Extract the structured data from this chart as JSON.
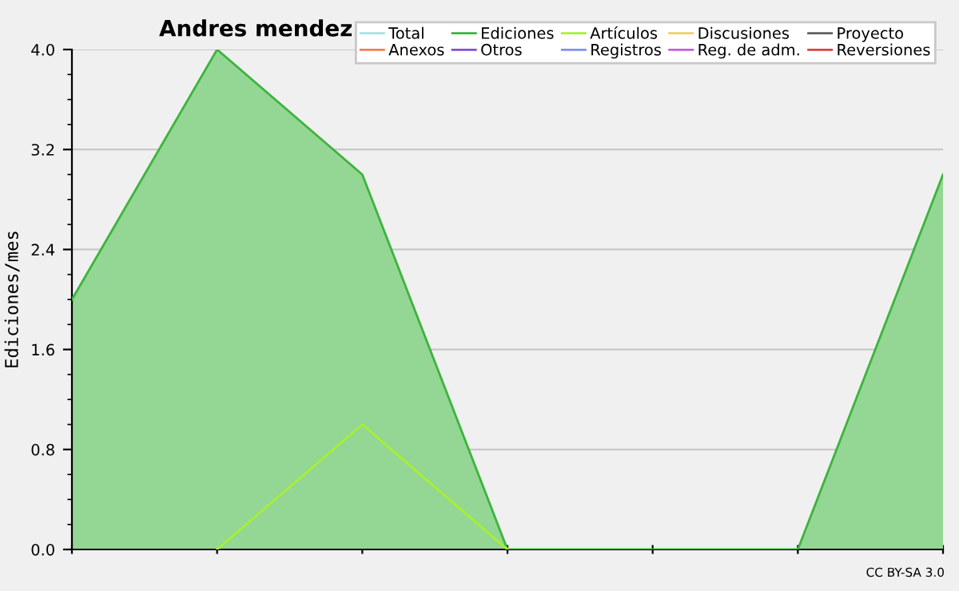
{
  "chart_data": {
    "type": "line",
    "title": "Andres mendez",
    "ylabel": "Ediciones/mes",
    "categories": [
      null,
      null,
      null,
      null,
      null,
      null,
      null
    ],
    "series": [
      {
        "name": "Total",
        "color": "#a6e3e3",
        "values": [
          null,
          null,
          null,
          null,
          null,
          null,
          null
        ]
      },
      {
        "name": "Ediciones",
        "color": "#3cb43c",
        "type": "area",
        "values": [
          2,
          4,
          3,
          0,
          0,
          0,
          3
        ]
      },
      {
        "name": "Artículos",
        "color": "#a8f030",
        "values": [
          null,
          0,
          1,
          0,
          null,
          null,
          null
        ]
      },
      {
        "name": "Discusiones",
        "color": "#f0d060",
        "values": [
          null,
          null,
          null,
          null,
          null,
          null,
          null
        ]
      },
      {
        "name": "Proyecto",
        "color": "#606060",
        "values": [
          null,
          null,
          null,
          null,
          null,
          null,
          null
        ]
      },
      {
        "name": "Anexos",
        "color": "#f08050",
        "values": [
          null,
          null,
          null,
          null,
          null,
          null,
          null
        ]
      },
      {
        "name": "Otros",
        "color": "#8050d0",
        "values": [
          null,
          null,
          null,
          null,
          null,
          null,
          null
        ]
      },
      {
        "name": "Registros",
        "color": "#8090f0",
        "values": [
          null,
          null,
          null,
          null,
          null,
          null,
          null
        ]
      },
      {
        "name": "Reg. de adm.",
        "color": "#c060e0",
        "values": [
          null,
          null,
          null,
          null,
          null,
          null,
          null
        ]
      },
      {
        "name": "Reversiones",
        "color": "#e04040",
        "values": [
          null,
          null,
          null,
          null,
          null,
          null,
          null
        ]
      }
    ],
    "ylim": [
      0,
      4
    ],
    "yticks": [
      {
        "value": 0,
        "label": "0.0"
      },
      {
        "value": 0.8,
        "label": "0.8"
      },
      {
        "value": 1.6,
        "label": "1.6"
      },
      {
        "value": 2.4,
        "label": "2.4"
      },
      {
        "value": 3.2,
        "label": "3.2"
      },
      {
        "value": 4,
        "label": "4.0"
      }
    ],
    "grid": "y",
    "legend": "top right",
    "annotations": [
      "CC BY-SA 3.0"
    ]
  }
}
